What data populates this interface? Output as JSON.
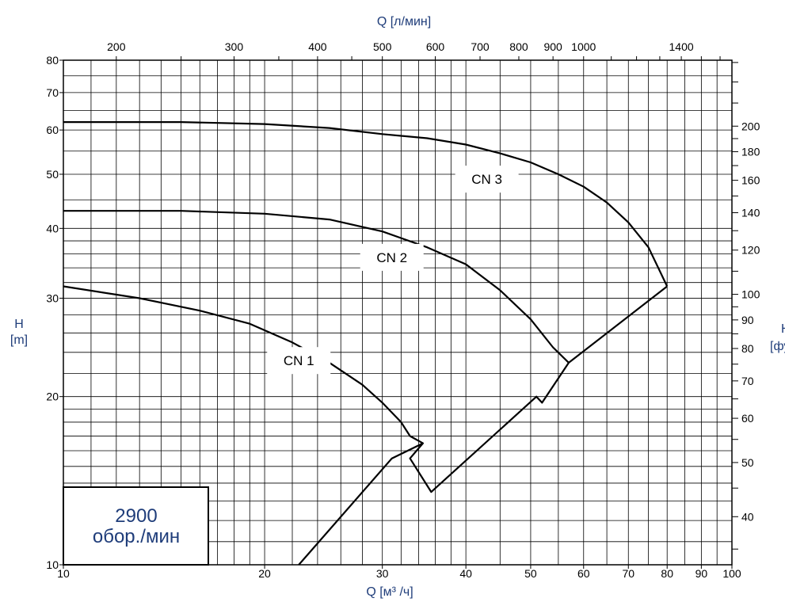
{
  "chart_data": {
    "type": "line",
    "x_title": "Q [м³ /ч]",
    "x_top_title": "Q [л/мин]",
    "y_title_left_1": "H",
    "y_title_left_2": "[m]",
    "y_title_right_1": "Н",
    "y_title_right_2": "[фут]",
    "xlim": [
      10,
      100
    ],
    "ylim": [
      10,
      80
    ],
    "x_scale": "log",
    "y_scale": "log",
    "grid": true,
    "x_ticks": [
      10,
      20,
      30,
      40,
      50,
      60,
      70,
      80,
      90,
      100
    ],
    "x_tick_labels": [
      "10",
      "20",
      "30",
      "40",
      "50",
      "60",
      "70",
      "80",
      "90",
      "100"
    ],
    "y_ticks": [
      10,
      20,
      30,
      40,
      50,
      60,
      70,
      80
    ],
    "y_tick_labels": [
      "10",
      "20",
      "30",
      "40",
      "50",
      "60",
      "70",
      "80"
    ],
    "top_ticks": [
      200,
      300,
      400,
      500,
      600,
      700,
      800,
      900,
      1000,
      1400
    ],
    "top_tick_labels": [
      "200",
      "300",
      "400",
      "500",
      "600",
      "700",
      "800",
      "900",
      "1000",
      "1400"
    ],
    "right_ticks": [
      40,
      50,
      60,
      70,
      80,
      90,
      100,
      120,
      140,
      160,
      180,
      200
    ],
    "right_tick_labels": [
      "40",
      "50",
      "60",
      "70",
      "80",
      "90",
      "100",
      "120",
      "140",
      "160",
      "180",
      "200"
    ],
    "series": [
      {
        "name": "CN 1",
        "x": [
          10,
          13,
          16,
          19,
          22,
          25,
          28,
          30,
          32,
          33,
          34.5
        ],
        "y": [
          31.5,
          30,
          28.5,
          27,
          25,
          23,
          21,
          19.5,
          18,
          17,
          16.5
        ]
      },
      {
        "name": "CN 2",
        "x": [
          10,
          15,
          20,
          25,
          30,
          35,
          40,
          45,
          50,
          54,
          57
        ],
        "y": [
          43,
          43,
          42.5,
          41.5,
          39.5,
          37,
          34.5,
          31,
          27.5,
          24.5,
          23
        ]
      },
      {
        "name": "CN 3",
        "x": [
          10,
          15,
          20,
          25,
          30,
          35,
          40,
          45,
          50,
          55,
          60,
          65,
          70,
          75,
          80
        ],
        "y": [
          62,
          62,
          61.5,
          60.5,
          59,
          58,
          56.5,
          54.5,
          52.5,
          50,
          47.5,
          44.5,
          41,
          37,
          31.5
        ]
      }
    ],
    "envelope": {
      "x": [
        22.5,
        31,
        34.5,
        33,
        35.5,
        51,
        52,
        57,
        80
      ],
      "y": [
        10,
        15.5,
        16.5,
        15.5,
        13.5,
        20,
        19.5,
        23,
        31.5
      ]
    },
    "annotations": [
      {
        "text": "CN 3",
        "x": 43,
        "y": 49
      },
      {
        "text": "CN 2",
        "x": 31,
        "y": 35.5
      },
      {
        "text": "CN 1",
        "x": 22.5,
        "y": 23.2
      }
    ],
    "speed_label_1": "2900",
    "speed_label_2": "обор./мин"
  }
}
